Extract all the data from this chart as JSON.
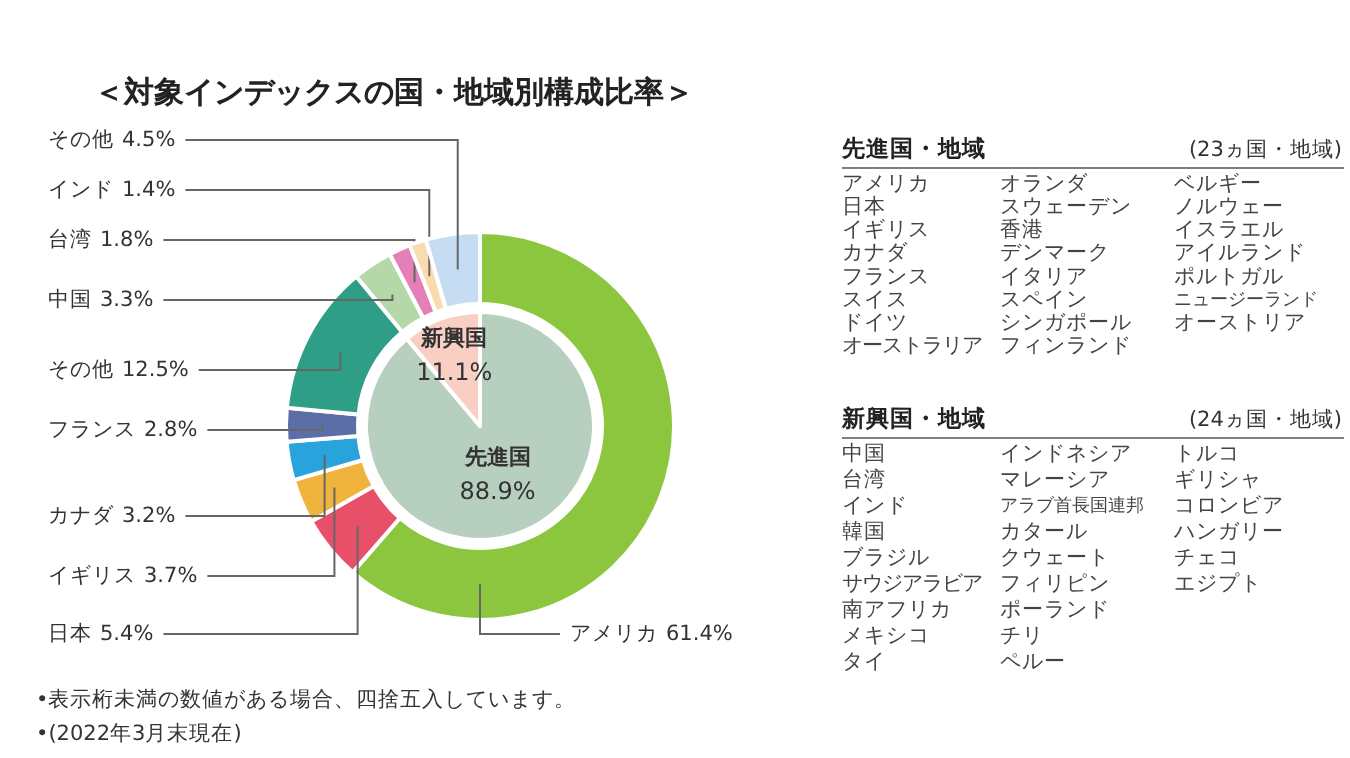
{
  "chart_data": [
    {
      "type": "donut",
      "title": "＜対象インデックスの国・地域別構成比率＞",
      "categories": [
        "アメリカ",
        "日本",
        "イギリス",
        "カナダ",
        "フランス",
        "その他",
        "中国",
        "台湾",
        "インド",
        "その他"
      ],
      "values": [
        61.4,
        5.4,
        3.7,
        3.2,
        2.8,
        12.5,
        3.3,
        1.8,
        1.4,
        4.5
      ],
      "colors": [
        "#8cc63f",
        "#e8506a",
        "#f0b33c",
        "#29a3dc",
        "#5b6ea8",
        "#2e9e86",
        "#b5d8a8",
        "#e57fb8",
        "#f8dcae",
        "#c6dcf2"
      ],
      "value_labels": [
        "61.4%",
        "5.4%",
        "3.7%",
        "3.2%",
        "2.8%",
        "12.5%",
        "3.3%",
        "1.8%",
        "1.4%",
        "4.5%"
      ],
      "annotations": [
        "•表示桁未満の数値がある場合、四捨五入しています。",
        "•(2022年3月末現在)"
      ]
    },
    {
      "type": "pie",
      "categories": [
        "先進国",
        "新興国"
      ],
      "values": [
        88.9,
        11.1
      ],
      "colors": [
        "#b7cfbf",
        "#f8cfc2"
      ],
      "value_labels": [
        "88.9%",
        "11.1%"
      ]
    },
    {
      "type": "other",
      "title": "先進国・地域",
      "subtitle": "(23ヵ国・地域)",
      "annotations": [
        "アメリカ",
        "日本",
        "イギリス",
        "カナダ",
        "フランス",
        "スイス",
        "ドイツ",
        "オーストラリア",
        "オランダ",
        "スウェーデン",
        "香港",
        "デンマーク",
        "イタリア",
        "スペイン",
        "シンガポール",
        "フィンランド",
        "ベルギー",
        "ノルウェー",
        "イスラエル",
        "アイルランド",
        "ポルトガル",
        "ニュージーランド",
        "オーストリア"
      ]
    },
    {
      "type": "other",
      "title": "新興国・地域",
      "subtitle": "(24ヵ国・地域)",
      "annotations": [
        "中国",
        "台湾",
        "インド",
        "韓国",
        "ブラジル",
        "サウジアラビア",
        "南アフリカ",
        "メキシコ",
        "タイ",
        "インドネシア",
        "マレーシア",
        "アラブ首長国連邦",
        "カタール",
        "クウェート",
        "フィリピン",
        "ポーランド",
        "チリ",
        "ペルー",
        "トルコ",
        "ギリシャ",
        "コロンビア",
        "ハンガリー",
        "チェコ",
        "エジプト"
      ]
    }
  ]
}
